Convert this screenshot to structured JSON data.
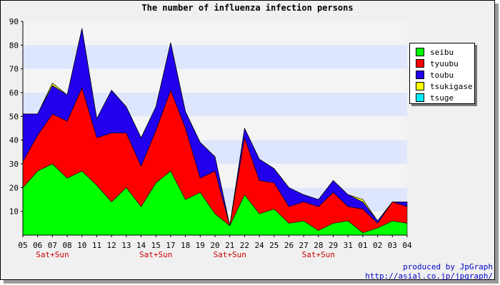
{
  "chart_data": {
    "type": "area",
    "stacked": true,
    "title": "The number of influenza infection persons",
    "categories": [
      "05",
      "06",
      "07",
      "08",
      "10",
      "11",
      "12",
      "13",
      "14",
      "15",
      "17",
      "18",
      "19",
      "20",
      "21",
      "22",
      "24",
      "25",
      "26",
      "27",
      "28",
      "29",
      "31",
      "01",
      "02",
      "03",
      "04"
    ],
    "weekend_labels": [
      "",
      "",
      "Sat+Sun",
      "",
      "",
      "",
      "",
      "",
      "",
      "Sat+Sun",
      "",
      "",
      "",
      "",
      "Sat+Sun",
      "",
      "",
      "",
      "",
      "",
      "Sat+Sun",
      "",
      "",
      "",
      "",
      "",
      ""
    ],
    "ylim": [
      0,
      90
    ],
    "yticks": [
      10,
      20,
      30,
      40,
      50,
      60,
      70,
      80,
      90
    ],
    "grid": "horizontal bands",
    "legend_position": "right",
    "series": [
      {
        "name": "seibu",
        "color": "#00ff00",
        "values": [
          20,
          27,
          30,
          24,
          27,
          21,
          14,
          20,
          12,
          22,
          27,
          15,
          18,
          9,
          4,
          17,
          9,
          11,
          5,
          6,
          2,
          5,
          6,
          1,
          3,
          6,
          5
        ]
      },
      {
        "name": "tyuubu",
        "color": "#ff0000",
        "values": [
          11,
          15,
          21,
          24,
          35,
          20,
          29,
          23,
          17,
          22,
          34,
          30,
          6,
          18,
          0,
          24,
          14,
          11,
          7,
          8,
          10,
          13,
          6,
          10,
          2,
          8,
          7
        ]
      },
      {
        "name": "toubu",
        "color": "#2200ee",
        "values": [
          20,
          9,
          12,
          11,
          25,
          8,
          18,
          11,
          12,
          10,
          20,
          7,
          15,
          6,
          0,
          4,
          9,
          6,
          8,
          3,
          3,
          5,
          5,
          3,
          1,
          0,
          2
        ]
      },
      {
        "name": "tsukigase",
        "color": "#ffff00",
        "values": [
          0,
          0,
          1,
          0,
          0,
          0,
          0,
          0,
          0,
          0,
          0,
          0,
          0,
          0,
          0,
          0,
          0,
          0,
          0,
          0,
          0,
          0,
          0,
          1,
          0,
          0,
          0
        ]
      },
      {
        "name": "tsuge",
        "color": "#00eeff",
        "values": [
          0,
          0,
          0,
          0,
          0,
          0,
          0,
          0,
          0,
          0,
          0,
          0,
          0,
          0,
          0,
          0,
          0,
          0,
          0,
          0,
          0,
          0,
          0,
          0,
          0,
          0,
          0
        ]
      }
    ]
  },
  "credits": {
    "line1": "produced by JpGraph",
    "line2": "http://asial.co.jp/jpgraph/"
  }
}
